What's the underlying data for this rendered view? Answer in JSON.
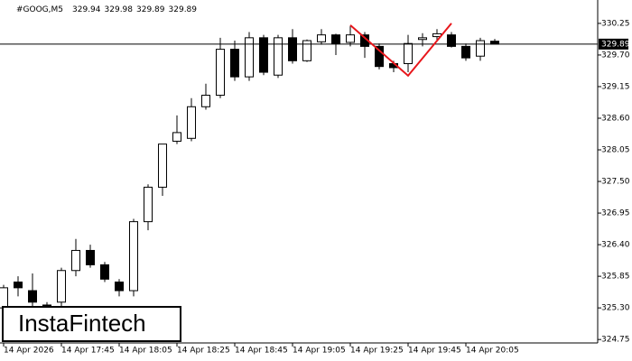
{
  "chart_data": {
    "type": "candlestick",
    "symbol": "#GOOG,M5",
    "watermark": "InstaFintech",
    "categories": [
      "14 Apr 2026",
      null,
      null,
      null,
      "14 Apr 17:45",
      null,
      null,
      null,
      "14 Apr 18:05",
      null,
      null,
      null,
      "14 Apr 18:25",
      null,
      null,
      null,
      "14 Apr 18:45",
      null,
      null,
      null,
      "14 Apr 19:05",
      null,
      null,
      null,
      "14 Apr 19:25",
      null,
      null,
      null,
      "14 Apr 19:45",
      null,
      null,
      null,
      "14 Apr 20:05",
      null,
      null
    ],
    "open": [
      325.3,
      325.75,
      325.6,
      325.35,
      325.4,
      325.95,
      326.3,
      326.05,
      325.75,
      325.6,
      326.8,
      327.4,
      328.2,
      328.25,
      328.8,
      329.0,
      329.8,
      329.32,
      330.0,
      329.35,
      330.0,
      329.6,
      329.93,
      330.05,
      329.92,
      330.05,
      329.85,
      329.55,
      329.55,
      329.97,
      330.02,
      330.05,
      329.85,
      329.68,
      329.94
    ],
    "high": [
      325.7,
      325.85,
      325.9,
      325.4,
      326.0,
      326.5,
      326.4,
      326.1,
      325.8,
      326.85,
      327.45,
      328.15,
      328.65,
      328.95,
      329.2,
      330.0,
      329.95,
      330.1,
      330.05,
      330.05,
      330.15,
      329.97,
      330.15,
      330.07,
      330.2,
      330.1,
      329.9,
      329.6,
      330.05,
      330.08,
      330.15,
      330.1,
      329.9,
      330.0,
      329.98
    ],
    "low": [
      325.2,
      325.5,
      325.3,
      325.3,
      325.3,
      325.85,
      326.0,
      325.75,
      325.5,
      325.5,
      326.65,
      327.25,
      328.15,
      328.2,
      328.75,
      328.95,
      329.25,
      329.25,
      329.35,
      329.3,
      329.55,
      329.58,
      329.88,
      329.7,
      329.85,
      329.65,
      329.45,
      329.4,
      329.4,
      329.85,
      329.95,
      329.83,
      329.6,
      329.6,
      329.89
    ],
    "close": [
      325.65,
      325.65,
      325.4,
      325.35,
      325.95,
      326.3,
      326.05,
      325.8,
      325.6,
      326.8,
      327.4,
      328.15,
      328.35,
      328.8,
      329.0,
      329.8,
      329.32,
      330.0,
      329.4,
      330.0,
      329.6,
      329.95,
      330.05,
      329.9,
      330.05,
      329.85,
      329.5,
      329.48,
      329.9,
      330.0,
      330.07,
      329.85,
      329.65,
      329.95,
      329.89
    ],
    "up_color": "#ffffff",
    "down_color": "#000000",
    "ylim": [
      324.69,
      330.5
    ],
    "yticks": [
      330.25,
      {
        "value": 329.7,
        "label": "329.70"
      },
      329.15,
      {
        "value": 328.6,
        "label": "328.60"
      },
      328.05,
      {
        "value": 327.5,
        "label": "327.50"
      },
      326.95,
      {
        "value": 326.4,
        "label": "326.40"
      },
      325.85,
      {
        "value": 325.3,
        "label": "325.30"
      },
      324.75
    ],
    "pattern": {
      "color": "#e8161b",
      "index": [
        24,
        28,
        31
      ],
      "values": [
        330.22,
        329.34,
        330.25
      ]
    }
  }
}
